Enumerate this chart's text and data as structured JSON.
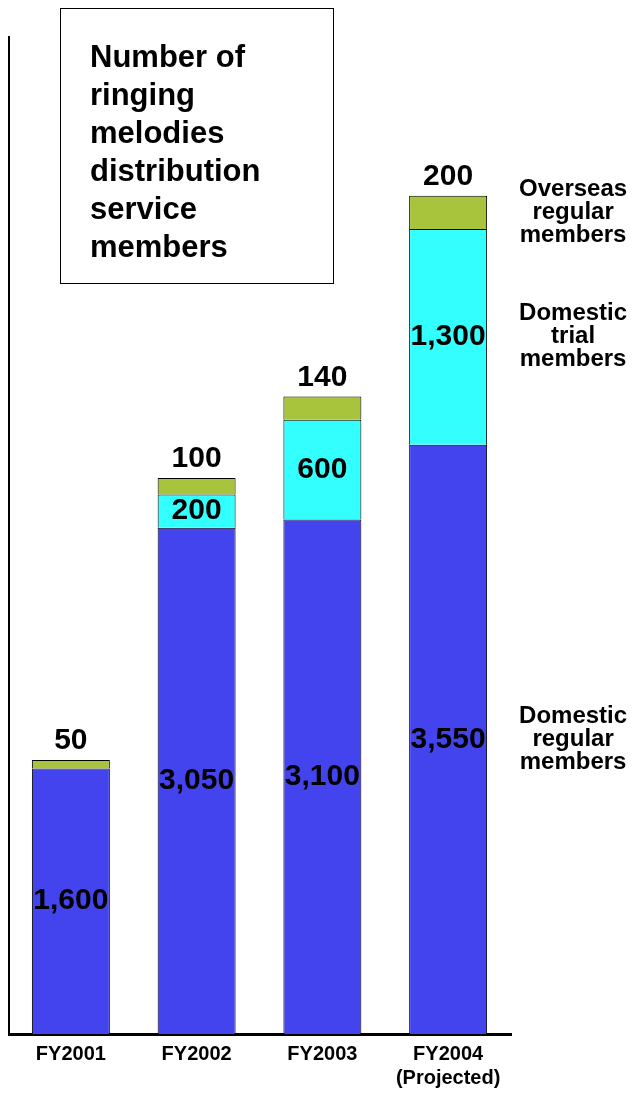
{
  "chart_data": {
    "type": "bar",
    "stacked": true,
    "title": "Number of ringing melodies distribution service members",
    "categories": [
      "FY2001",
      "FY2002",
      "FY2003",
      "FY2004\n(Projected)"
    ],
    "series": [
      {
        "name": "Domestic regular members",
        "color": "#4444ee",
        "values": [
          1600,
          3050,
          3100,
          3550
        ],
        "value_labels": [
          "1,600",
          "3,050",
          "3,100",
          "3,550"
        ]
      },
      {
        "name": "Domestic trial members",
        "color": "#33ffff",
        "values": [
          null,
          200,
          600,
          1300
        ],
        "value_labels": [
          null,
          "200",
          "600",
          "1,300"
        ]
      },
      {
        "name": "Overseas regular members",
        "color": "#a8c43c",
        "values": [
          50,
          100,
          140,
          200
        ],
        "value_labels": [
          "50",
          "100",
          "140",
          "200"
        ]
      }
    ],
    "grid": false,
    "legend": false
  }
}
